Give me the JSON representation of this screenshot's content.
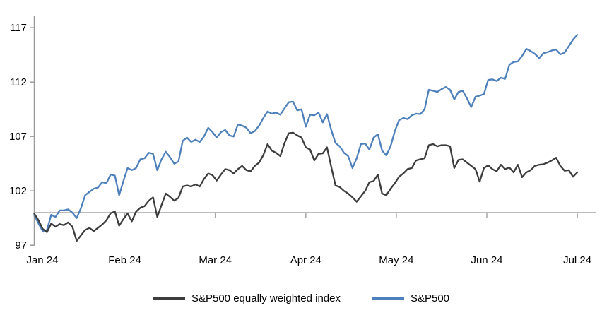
{
  "chart_data": {
    "type": "line",
    "title": "",
    "x_description": "Daily values, Jan 2024 through early Jul 2024, both series indexed to 100 at start of January",
    "x_axis": {
      "tick_labels": [
        "Jan 24",
        "Feb 24",
        "Mar 24",
        "Apr 24",
        "May 24",
        "Jun 24",
        "Jul 24"
      ],
      "baseline_value": 100
    },
    "y_axis": {
      "ticks": [
        117,
        112,
        107,
        102,
        97
      ],
      "range": [
        97,
        117
      ]
    },
    "legend_position": "bottom-center",
    "grid": "off",
    "series": [
      {
        "name": "S&P500 equally weighted index",
        "color": "#3d3d3d",
        "values": [
          99.9,
          99.3,
          98.5,
          98.2,
          99.0,
          98.7,
          98.95,
          98.85,
          99.1,
          98.7,
          97.4,
          97.9,
          98.4,
          98.6,
          98.3,
          98.6,
          98.9,
          99.3,
          99.95,
          100.1,
          98.8,
          99.4,
          99.9,
          99.2,
          100.1,
          100.45,
          100.6,
          101.1,
          101.4,
          99.6,
          100.7,
          101.75,
          101.45,
          101.1,
          101.35,
          102.4,
          102.5,
          102.4,
          102.6,
          102.4,
          103.1,
          103.6,
          103.45,
          102.95,
          103.5,
          104.0,
          103.9,
          103.6,
          104.0,
          104.3,
          103.9,
          103.8,
          104.3,
          104.6,
          105.3,
          106.3,
          105.7,
          105.5,
          105.2,
          106.4,
          107.3,
          107.35,
          107.1,
          106.9,
          106.0,
          105.8,
          104.8,
          105.4,
          105.45,
          106.0,
          104.2,
          102.5,
          102.35,
          102.0,
          101.75,
          101.4,
          101.0,
          101.5,
          102.0,
          102.8,
          102.9,
          103.5,
          101.75,
          101.6,
          102.2,
          102.7,
          103.3,
          103.6,
          104.0,
          104.1,
          104.8,
          104.9,
          105.0,
          106.2,
          106.3,
          106.1,
          106.2,
          106.2,
          106.1,
          104.1,
          104.85,
          104.9,
          104.6,
          104.3,
          104.0,
          102.85,
          104.1,
          104.35,
          104.0,
          103.8,
          104.4,
          104.0,
          104.15,
          103.7,
          104.4,
          103.25,
          103.7,
          103.9,
          104.3,
          104.4,
          104.45,
          104.6,
          104.8,
          105.05,
          104.3,
          103.85,
          103.9,
          103.3,
          103.7
        ]
      },
      {
        "name": "S&P500",
        "color": "#4e80bc",
        "values": [
          99.8,
          99.0,
          98.3,
          98.4,
          99.8,
          99.6,
          100.2,
          100.2,
          100.3,
          100.0,
          99.5,
          100.4,
          101.6,
          101.9,
          102.2,
          102.3,
          102.8,
          102.7,
          103.5,
          103.4,
          101.6,
          102.9,
          104.1,
          103.9,
          104.1,
          104.9,
          105.0,
          105.5,
          105.4,
          103.9,
          104.9,
          105.6,
          105.1,
          104.5,
          104.7,
          106.6,
          106.9,
          106.5,
          106.7,
          106.5,
          107.0,
          107.8,
          107.4,
          106.9,
          107.4,
          107.6,
          107.1,
          107.0,
          108.1,
          108.0,
          107.8,
          107.3,
          107.5,
          108.0,
          108.7,
          109.3,
          109.1,
          109.2,
          109.0,
          109.6,
          110.15,
          110.2,
          109.4,
          109.5,
          107.9,
          109.0,
          108.95,
          109.2,
          108.3,
          109.05,
          107.6,
          106.4,
          106.1,
          105.5,
          105.2,
          104.1,
          105.0,
          106.3,
          106.35,
          105.8,
          106.9,
          107.2,
          105.7,
          105.25,
          106.1,
          107.5,
          108.5,
          108.7,
          108.6,
          108.95,
          109.1,
          109.05,
          109.5,
          111.3,
          111.2,
          111.1,
          111.35,
          111.55,
          111.3,
          110.4,
          111.1,
          111.2,
          110.5,
          109.7,
          110.65,
          110.75,
          110.9,
          112.2,
          112.25,
          112.1,
          112.4,
          112.3,
          113.6,
          113.85,
          113.9,
          114.4,
          115.05,
          114.85,
          114.6,
          114.2,
          114.65,
          114.75,
          114.9,
          115.0,
          114.55,
          114.7,
          115.3,
          115.9,
          116.35
        ]
      }
    ],
    "colors": {
      "axis": "#9c9c9c",
      "baseline": "#a6a6a6",
      "text": "#000000"
    }
  }
}
